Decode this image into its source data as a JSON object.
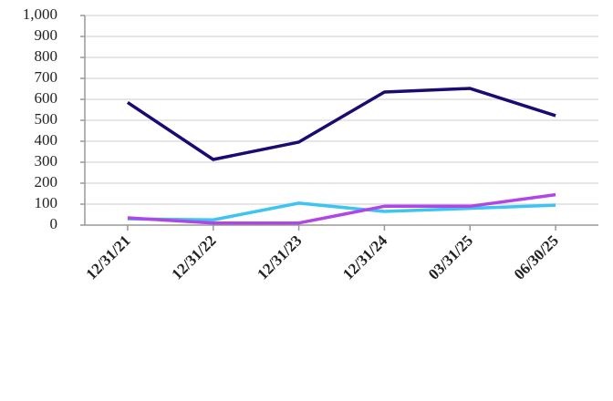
{
  "chart_data": {
    "type": "line",
    "categories": [
      "12/31/21",
      "12/31/22",
      "12/31/23",
      "12/31/24",
      "03/31/25",
      "06/30/25"
    ],
    "series": [
      {
        "color": "#1c0a72",
        "values": [
          585,
          313,
          396,
          635,
          652,
          522
        ]
      },
      {
        "color": "#3ec4f2",
        "values": [
          30,
          25,
          105,
          65,
          80,
          95
        ]
      },
      {
        "color": "#b146e6",
        "values": [
          35,
          10,
          10,
          90,
          90,
          145
        ]
      }
    ],
    "ylim": [
      0,
      1000
    ],
    "yticks": [
      0,
      100,
      200,
      300,
      400,
      500,
      600,
      700,
      800,
      900,
      {
        "value": 1000,
        "label": "1,000"
      }
    ],
    "grid": true
  }
}
